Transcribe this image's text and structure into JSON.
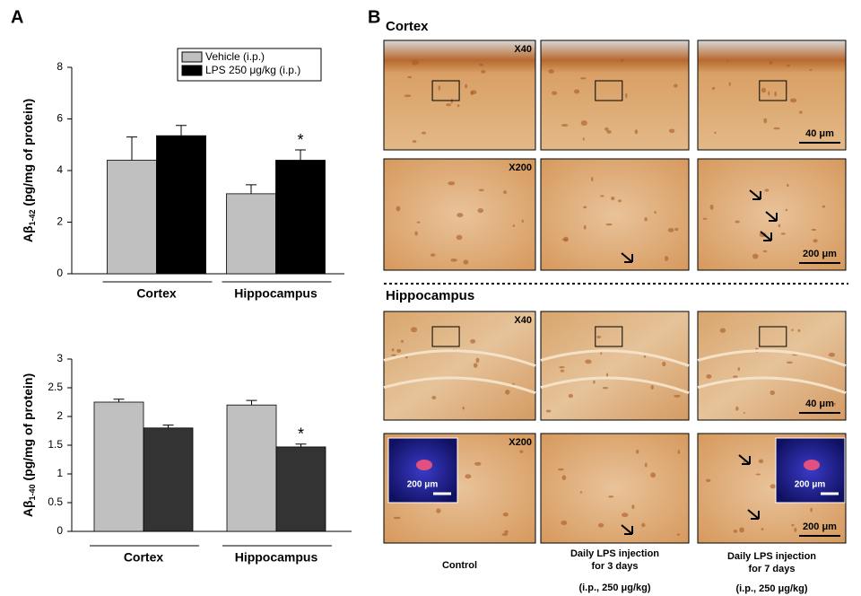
{
  "panel_a_label": "A",
  "chart_data": [
    {
      "type": "bar",
      "ylabel": [
        "Aβ",
        "1-42",
        " (pg/mg of protein)"
      ],
      "categories": [
        "Cortex",
        "Hippocampus"
      ],
      "series": [
        {
          "name": "Vehicle (i.p.)",
          "color": "#c0c0c0",
          "values": [
            4.4,
            3.1
          ],
          "errors": [
            0.9,
            0.35
          ],
          "significance": [
            null,
            null
          ]
        },
        {
          "name": "LPS 250 μg/kg (i.p.)",
          "color": "#000000",
          "values": [
            5.35,
            4.4
          ],
          "errors": [
            0.4,
            0.4
          ],
          "significance": [
            null,
            "*"
          ]
        }
      ],
      "ylim": [
        0,
        8
      ],
      "yticks": [
        0,
        2,
        4,
        6,
        8
      ],
      "legend": "top-right"
    },
    {
      "type": "bar",
      "ylabel": [
        "Aβ",
        "1-40",
        " (pg/mg of protein)"
      ],
      "categories": [
        "Cortex",
        "Hippocampus"
      ],
      "series": [
        {
          "color": "#c0c0c0",
          "values": [
            2.25,
            2.2
          ],
          "errors": [
            0.05,
            0.08
          ],
          "significance": [
            null,
            null
          ]
        },
        {
          "color": "#333333",
          "values": [
            1.8,
            1.47
          ],
          "errors": [
            0.05,
            0.05
          ],
          "significance": [
            null,
            "*"
          ]
        }
      ],
      "ylim": [
        0,
        3
      ],
      "yticks": [
        0,
        0.5,
        1,
        1.5,
        2,
        2.5,
        3
      ]
    }
  ],
  "figure_b": {
    "label": "B",
    "sections": [
      {
        "title": "Cortex",
        "rows": [
          {
            "magnification": "X40",
            "scale": "40 μm"
          },
          {
            "magnification": "X200",
            "scale": "200 μm"
          }
        ]
      },
      {
        "title": "Hippocampus",
        "rows": [
          {
            "magnification": "X40",
            "scale": "40 μm"
          },
          {
            "magnification": "X200",
            "scale": "200 μm"
          }
        ],
        "inset_scale": "200 μm"
      }
    ],
    "columns": [
      {
        "lines": [
          "Control"
        ]
      },
      {
        "lines": [
          "Daily LPS injection",
          "for 3 days",
          "(i.p., 250 μg/kg)"
        ]
      },
      {
        "lines": [
          "Daily LPS injection",
          "for 7 days",
          "(i.p., 250 μg/kg)"
        ]
      }
    ]
  }
}
